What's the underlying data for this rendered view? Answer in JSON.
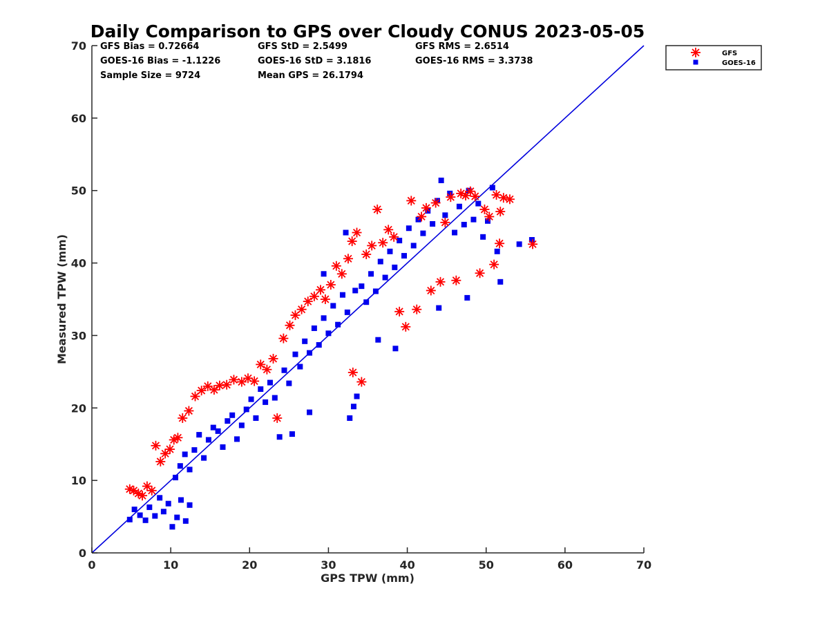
{
  "chart_data": {
    "type": "scatter",
    "title": "Daily Comparison to GPS over Cloudy CONUS 2023-05-05",
    "xlabel": "GPS TPW (mm)",
    "ylabel": "Measured TPW (mm)",
    "xlim": [
      0,
      70
    ],
    "ylim": [
      0,
      70
    ],
    "xticks": [
      0,
      10,
      20,
      30,
      40,
      50,
      60,
      70
    ],
    "yticks": [
      0,
      10,
      20,
      30,
      40,
      50,
      60,
      70
    ],
    "grid": false,
    "legend_position": "outside-top-right",
    "reference_line": {
      "x": [
        0,
        70
      ],
      "y": [
        0,
        70
      ],
      "color": "#0000dd"
    },
    "stats": {
      "gfs_bias": "GFS Bias = 0.72664",
      "gfs_std": "GFS StD = 2.5499",
      "gfs_rms": "GFS RMS = 2.6514",
      "goes_bias": "GOES-16 Bias = -1.1226",
      "goes_std": "GOES-16 StD = 3.1816",
      "goes_rms": "GOES-16 RMS = 3.3738",
      "sample_size": "Sample Size = 9724",
      "mean_gps": "Mean GPS = 26.1794"
    },
    "series": [
      {
        "name": "GFS",
        "marker": "asterisk",
        "color": "#ff0000",
        "points": [
          [
            4.8,
            8.8
          ],
          [
            5.3,
            8.6
          ],
          [
            5.9,
            8.2
          ],
          [
            6.4,
            7.9
          ],
          [
            7.0,
            9.2
          ],
          [
            7.6,
            8.6
          ],
          [
            8.1,
            14.8
          ],
          [
            8.7,
            12.6
          ],
          [
            9.3,
            13.7
          ],
          [
            9.9,
            14.3
          ],
          [
            10.4,
            15.6
          ],
          [
            10.9,
            15.9
          ],
          [
            11.5,
            18.6
          ],
          [
            12.3,
            19.6
          ],
          [
            13.1,
            21.6
          ],
          [
            13.9,
            22.4
          ],
          [
            14.7,
            23.0
          ],
          [
            15.5,
            22.5
          ],
          [
            16.2,
            23.1
          ],
          [
            17.1,
            23.2
          ],
          [
            18.0,
            23.9
          ],
          [
            19.0,
            23.6
          ],
          [
            19.8,
            24.1
          ],
          [
            20.6,
            23.7
          ],
          [
            21.4,
            26.0
          ],
          [
            22.2,
            25.3
          ],
          [
            23.0,
            26.8
          ],
          [
            23.5,
            18.6
          ],
          [
            24.3,
            29.6
          ],
          [
            25.1,
            31.4
          ],
          [
            25.8,
            32.8
          ],
          [
            26.6,
            33.6
          ],
          [
            27.4,
            34.7
          ],
          [
            28.2,
            35.4
          ],
          [
            29.0,
            36.3
          ],
          [
            29.6,
            35.0
          ],
          [
            30.3,
            37.0
          ],
          [
            31.0,
            39.6
          ],
          [
            31.7,
            38.5
          ],
          [
            32.5,
            40.6
          ],
          [
            33.0,
            43.0
          ],
          [
            33.6,
            44.2
          ],
          [
            34.2,
            23.6
          ],
          [
            33.1,
            24.9
          ],
          [
            34.8,
            41.2
          ],
          [
            35.5,
            42.4
          ],
          [
            36.2,
            47.4
          ],
          [
            36.9,
            42.8
          ],
          [
            37.6,
            44.6
          ],
          [
            38.3,
            43.6
          ],
          [
            39.0,
            33.3
          ],
          [
            39.8,
            31.2
          ],
          [
            40.5,
            48.6
          ],
          [
            41.2,
            33.6
          ],
          [
            41.8,
            46.4
          ],
          [
            42.4,
            47.6
          ],
          [
            43.0,
            36.2
          ],
          [
            43.6,
            48.3
          ],
          [
            44.2,
            37.4
          ],
          [
            44.8,
            45.6
          ],
          [
            45.5,
            49.1
          ],
          [
            46.2,
            37.6
          ],
          [
            46.8,
            49.6
          ],
          [
            47.4,
            49.3
          ],
          [
            48.0,
            49.9
          ],
          [
            48.6,
            49.2
          ],
          [
            49.2,
            38.6
          ],
          [
            49.8,
            47.4
          ],
          [
            50.4,
            46.4
          ],
          [
            51.0,
            39.8
          ],
          [
            51.3,
            49.4
          ],
          [
            51.8,
            47.1
          ],
          [
            51.7,
            42.7
          ],
          [
            52.2,
            49.0
          ],
          [
            53.0,
            48.8
          ],
          [
            55.9,
            42.6
          ]
        ]
      },
      {
        "name": "GOES-16",
        "marker": "square",
        "color": "#0000ee",
        "points": [
          [
            4.8,
            4.6
          ],
          [
            5.4,
            6.0
          ],
          [
            6.1,
            5.2
          ],
          [
            6.8,
            4.5
          ],
          [
            7.3,
            6.3
          ],
          [
            8.0,
            5.1
          ],
          [
            8.6,
            7.6
          ],
          [
            9.1,
            5.7
          ],
          [
            9.7,
            6.8
          ],
          [
            10.2,
            3.6
          ],
          [
            10.8,
            4.9
          ],
          [
            11.3,
            7.3
          ],
          [
            11.9,
            4.4
          ],
          [
            12.4,
            6.6
          ],
          [
            10.6,
            10.4
          ],
          [
            11.2,
            12.0
          ],
          [
            11.8,
            13.6
          ],
          [
            12.4,
            11.5
          ],
          [
            13.0,
            14.2
          ],
          [
            13.6,
            16.3
          ],
          [
            14.2,
            13.1
          ],
          [
            14.8,
            15.6
          ],
          [
            15.4,
            17.3
          ],
          [
            16.0,
            16.8
          ],
          [
            16.6,
            14.6
          ],
          [
            17.2,
            18.2
          ],
          [
            17.8,
            19.0
          ],
          [
            18.4,
            15.7
          ],
          [
            19.0,
            17.6
          ],
          [
            19.6,
            19.8
          ],
          [
            20.2,
            21.2
          ],
          [
            20.8,
            18.6
          ],
          [
            21.4,
            22.6
          ],
          [
            22.0,
            20.8
          ],
          [
            22.6,
            23.5
          ],
          [
            23.2,
            21.4
          ],
          [
            23.8,
            16.0
          ],
          [
            24.4,
            25.2
          ],
          [
            25.0,
            23.4
          ],
          [
            25.4,
            16.4
          ],
          [
            25.8,
            27.4
          ],
          [
            26.4,
            25.7
          ],
          [
            27.0,
            29.2
          ],
          [
            27.6,
            27.6
          ],
          [
            28.2,
            31.0
          ],
          [
            28.8,
            28.7
          ],
          [
            29.4,
            32.4
          ],
          [
            30.0,
            30.3
          ],
          [
            30.6,
            34.1
          ],
          [
            31.2,
            31.5
          ],
          [
            31.8,
            35.6
          ],
          [
            32.4,
            33.2
          ],
          [
            32.7,
            18.6
          ],
          [
            33.2,
            20.2
          ],
          [
            33.6,
            21.6
          ],
          [
            34.2,
            36.8
          ],
          [
            34.8,
            34.6
          ],
          [
            35.4,
            38.5
          ],
          [
            36.0,
            36.1
          ],
          [
            36.6,
            40.2
          ],
          [
            37.2,
            38.0
          ],
          [
            37.8,
            41.6
          ],
          [
            38.4,
            39.4
          ],
          [
            39.0,
            43.1
          ],
          [
            39.6,
            41.0
          ],
          [
            40.2,
            44.8
          ],
          [
            40.8,
            42.4
          ],
          [
            41.4,
            46.0
          ],
          [
            42.0,
            44.1
          ],
          [
            42.6,
            47.2
          ],
          [
            43.2,
            45.4
          ],
          [
            43.8,
            48.6
          ],
          [
            44.3,
            51.4
          ],
          [
            44.8,
            46.6
          ],
          [
            45.4,
            49.6
          ],
          [
            46.0,
            44.2
          ],
          [
            46.6,
            47.8
          ],
          [
            47.2,
            45.3
          ],
          [
            47.8,
            50.0
          ],
          [
            48.4,
            46.0
          ],
          [
            49.0,
            48.2
          ],
          [
            49.6,
            43.6
          ],
          [
            50.2,
            45.8
          ],
          [
            50.8,
            50.4
          ],
          [
            51.4,
            41.6
          ],
          [
            51.8,
            37.4
          ],
          [
            54.2,
            42.6
          ],
          [
            55.8,
            43.2
          ],
          [
            32.2,
            44.2
          ],
          [
            29.4,
            38.5
          ],
          [
            38.5,
            28.2
          ],
          [
            36.3,
            29.4
          ],
          [
            44.0,
            33.8
          ],
          [
            27.6,
            19.4
          ],
          [
            33.4,
            36.2
          ],
          [
            47.6,
            35.2
          ]
        ]
      }
    ]
  }
}
